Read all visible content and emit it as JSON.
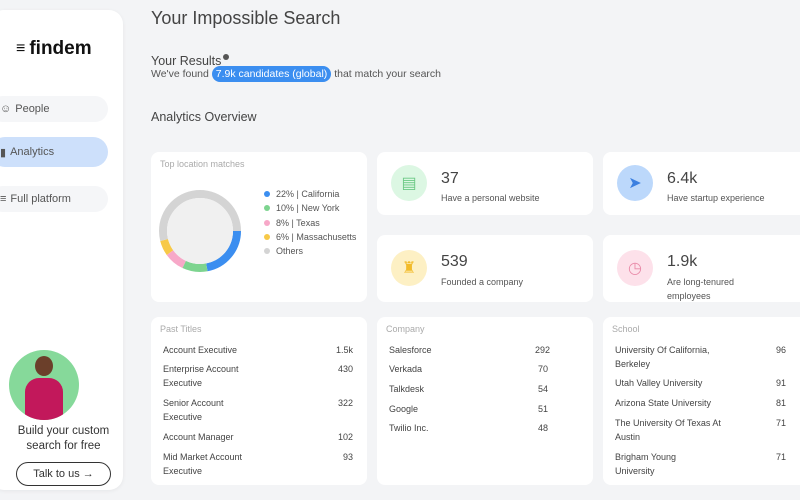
{
  "brand": "findem",
  "nav": [
    {
      "label": "People",
      "icon": "person-icon"
    },
    {
      "label": "Analytics",
      "icon": "bar-chart-icon",
      "active": true
    },
    {
      "label": "Full platform",
      "icon": "filter-icon"
    }
  ],
  "promo": {
    "text": "Build your custom search for free",
    "button": "Talk to us →"
  },
  "title": "Your Impossible Search",
  "results": {
    "heading": "Your Results",
    "prefix": "We've found",
    "highlight": "7.9k candidates (global)",
    "suffix": "that match your search"
  },
  "overview": "Analytics Overview",
  "locations": {
    "title": "Top location matches",
    "items": [
      {
        "label": "22% | California",
        "pct": 22,
        "color": "#3b8ef0"
      },
      {
        "label": "10% | New York",
        "pct": 10,
        "color": "#7dd48f"
      },
      {
        "label": "8% | Texas",
        "pct": 8,
        "color": "#f7a8c8"
      },
      {
        "label": "6% | Massachusetts",
        "pct": 6,
        "color": "#f7c948"
      },
      {
        "label": "Others",
        "pct": 54,
        "color": "#d4d4d4"
      }
    ]
  },
  "stats": [
    {
      "value": "37",
      "label": "Have a personal website",
      "icon": "website-icon",
      "bg": "#dcf7e3"
    },
    {
      "value": "6.4k",
      "label": "Have startup experience",
      "icon": "rocket-icon",
      "bg": "#bcd8fb"
    },
    {
      "value": "539",
      "label": "Founded a company",
      "icon": "building-icon",
      "bg": "#fdf0c4"
    },
    {
      "value": "1.9k",
      "label": "Are long-tenured employees",
      "icon": "clock-icon",
      "bg": "#fde1ea"
    }
  ],
  "tables": [
    {
      "title": "Past Titles",
      "rows": [
        [
          "Account Executive",
          "1.5k"
        ],
        [
          "Enterprise Account Executive",
          "430"
        ],
        [
          "Senior Account Executive",
          "322"
        ],
        [
          "Account Manager",
          "102"
        ],
        [
          "Mid Market Account Executive",
          "93"
        ]
      ]
    },
    {
      "title": "Company",
      "rows": [
        [
          "Salesforce",
          "292"
        ],
        [
          "Verkada",
          "70"
        ],
        [
          "Talkdesk",
          "54"
        ],
        [
          "Google",
          "51"
        ],
        [
          "Twilio Inc.",
          "48"
        ]
      ]
    },
    {
      "title": "School",
      "rows": [
        [
          "University Of California, Berkeley",
          "96"
        ],
        [
          "Utah Valley University",
          "91"
        ],
        [
          "Arizona State University",
          "81"
        ],
        [
          "The University Of Texas At Austin",
          "71"
        ],
        [
          "Brigham Young University",
          "71"
        ]
      ]
    }
  ]
}
